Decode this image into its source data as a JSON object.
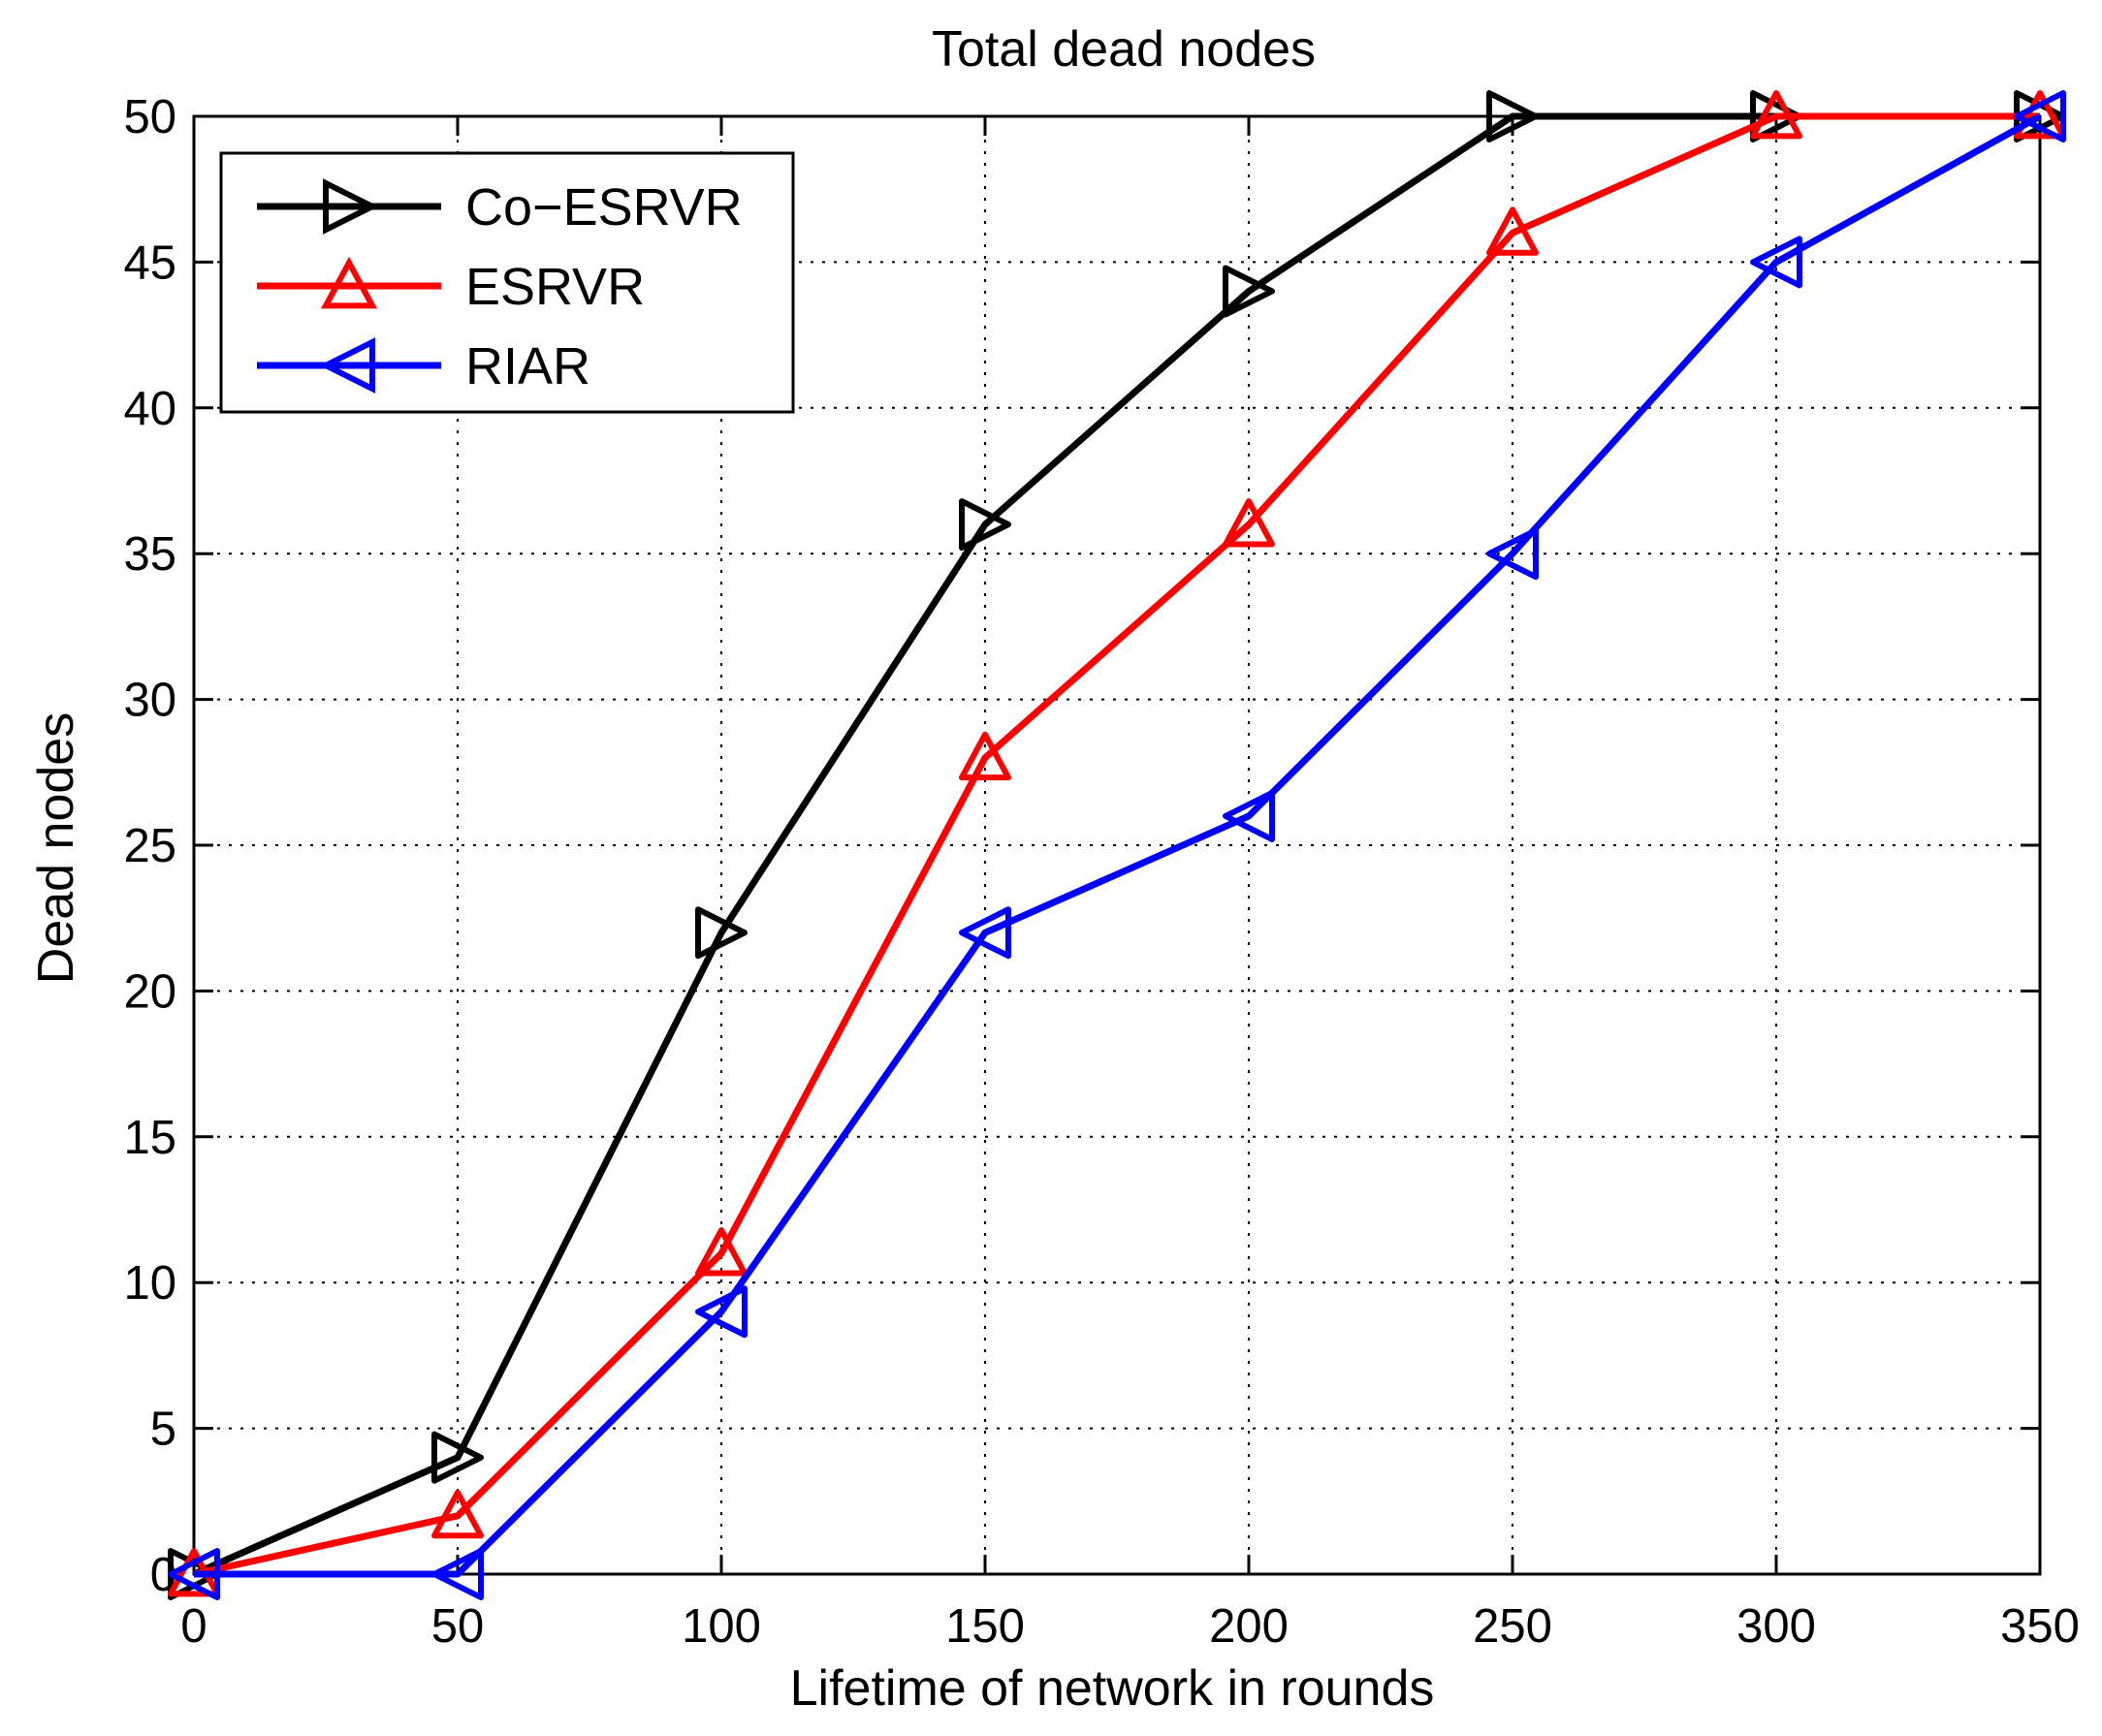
{
  "chart_data": {
    "type": "line",
    "title": "Total dead nodes",
    "xlabel": "Lifetime of network in rounds",
    "ylabel": "Dead nodes",
    "x": [
      0,
      50,
      100,
      150,
      200,
      250,
      300,
      350
    ],
    "xlim": [
      0,
      350
    ],
    "ylim": [
      0,
      50
    ],
    "xticks": [
      0,
      50,
      100,
      150,
      200,
      250,
      300,
      350
    ],
    "yticks": [
      0,
      5,
      10,
      15,
      20,
      25,
      30,
      35,
      40,
      45,
      50
    ],
    "grid": true,
    "legend_position": "top-left",
    "series": [
      {
        "name": "Co−ESRVR",
        "color": "#000000",
        "marker": "triangle-right",
        "values": [
          0,
          4,
          22,
          36,
          44,
          50,
          50,
          50
        ]
      },
      {
        "name": "ESRVR",
        "color": "#ff0000",
        "marker": "triangle-up",
        "values": [
          0,
          2,
          11,
          28,
          36,
          46,
          50,
          50
        ]
      },
      {
        "name": "RIAR",
        "color": "#0000ff",
        "marker": "triangle-left",
        "values": [
          0,
          0,
          9,
          22,
          26,
          35,
          45,
          50
        ]
      }
    ]
  }
}
